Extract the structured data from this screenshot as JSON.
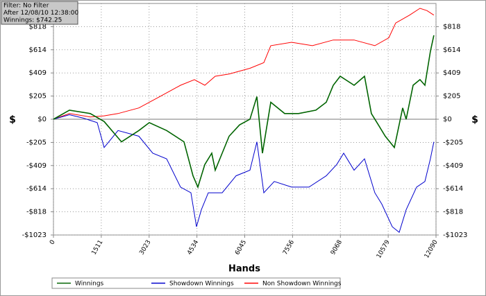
{
  "chart_data": {
    "type": "line",
    "annotations": [
      "Filter: No Filter",
      "After 12/08/10 12:38:00",
      "Winnings: $742.25"
    ],
    "xlabel": "Hands",
    "ylabel": "$",
    "xlim": [
      0,
      12090
    ],
    "xticks": [
      0,
      1511,
      3023,
      4534,
      6045,
      7556,
      9068,
      10579,
      12090
    ],
    "ylim": [
      -1023,
      1023
    ],
    "yticks": [
      {
        "value": -1023,
        "label": "-$1023"
      },
      {
        "value": -818,
        "label": "-$818"
      },
      {
        "value": -614,
        "label": "-$614"
      },
      {
        "value": -409,
        "label": "-$409"
      },
      {
        "value": -205,
        "label": "-$205"
      },
      {
        "value": 0,
        "label": "$0"
      },
      {
        "value": 205,
        "label": "$205"
      },
      {
        "value": 409,
        "label": "$409"
      },
      {
        "value": 614,
        "label": "$614"
      },
      {
        "value": 818,
        "label": "$818"
      }
    ],
    "grid": true,
    "series": [
      {
        "name": "Winnings",
        "color": "#006400",
        "x": [
          0,
          505,
          1163,
          1602,
          2150,
          2699,
          3028,
          3576,
          4125,
          4410,
          4564,
          4783,
          5002,
          5112,
          5551,
          5880,
          6209,
          6428,
          6604,
          6867,
          7306,
          7745,
          8293,
          8622,
          8842,
          9061,
          9500,
          9829,
          10048,
          10268,
          10487,
          10773,
          11036,
          11146,
          11365,
          11584,
          11738,
          11913,
          12023
        ],
        "values": [
          0,
          80,
          50,
          -20,
          -200,
          -100,
          -30,
          -100,
          -200,
          -500,
          -600,
          -400,
          -300,
          -450,
          -150,
          -50,
          0,
          200,
          -300,
          150,
          50,
          50,
          80,
          150,
          300,
          380,
          300,
          380,
          50,
          -50,
          -150,
          -250,
          100,
          0,
          300,
          350,
          300,
          600,
          742
        ]
      },
      {
        "name": "Showdown Winnings",
        "color": "#0000cd",
        "x": [
          0,
          505,
          943,
          1382,
          1602,
          2040,
          2699,
          3137,
          3576,
          4015,
          4344,
          4520,
          4673,
          4893,
          5331,
          5770,
          6209,
          6428,
          6648,
          6977,
          7525,
          8074,
          8622,
          8952,
          9171,
          9500,
          9829,
          10158,
          10377,
          10707,
          10926,
          11146,
          11475,
          11738,
          11913,
          12023
        ],
        "values": [
          0,
          40,
          10,
          -30,
          -250,
          -100,
          -150,
          -300,
          -350,
          -600,
          -650,
          -950,
          -800,
          -650,
          -650,
          -500,
          -450,
          -200,
          -650,
          -550,
          -600,
          -600,
          -500,
          -400,
          -300,
          -450,
          -350,
          -650,
          -750,
          -950,
          -1000,
          -800,
          -600,
          -550,
          -350,
          -200
        ]
      },
      {
        "name": "Non Showdown Winnings",
        "color": "#ff0000",
        "x": [
          0,
          505,
          1163,
          1602,
          2040,
          2699,
          3357,
          4015,
          4454,
          4783,
          5112,
          5551,
          6209,
          6648,
          6867,
          7525,
          8184,
          8842,
          9500,
          10158,
          10597,
          10816,
          11255,
          11584,
          11804,
          12023
        ],
        "values": [
          0,
          50,
          20,
          30,
          50,
          100,
          200,
          300,
          350,
          300,
          380,
          400,
          450,
          500,
          650,
          680,
          650,
          700,
          700,
          650,
          720,
          850,
          920,
          980,
          960,
          920
        ]
      }
    ]
  }
}
